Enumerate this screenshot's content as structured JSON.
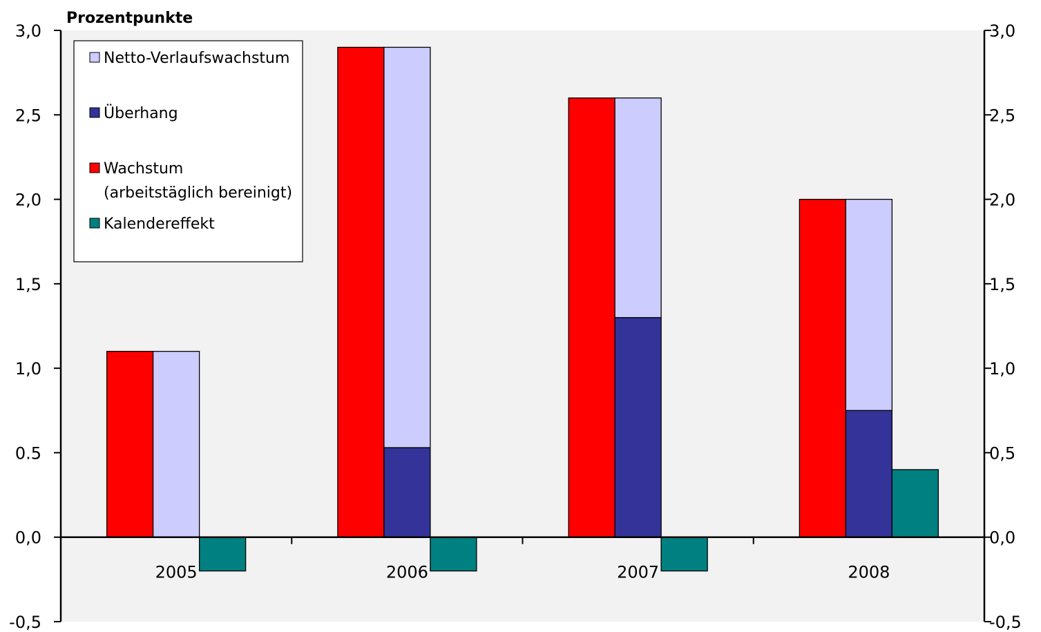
{
  "chart_data": {
    "type": "bar",
    "unit_label": "Prozentpunkte",
    "categories": [
      "2005",
      "2006",
      "2007",
      "2008"
    ],
    "ylim": [
      -0.5,
      3.0
    ],
    "y_ticks": [
      "3,0",
      "2,5",
      "2,0",
      "1,5",
      "1,0",
      "0.5",
      "0,0",
      "-0,5"
    ],
    "y_tick_values": [
      3.0,
      2.5,
      2.0,
      1.5,
      1.0,
      0.5,
      0.0,
      -0.5
    ],
    "y_ticks_right": [
      "3,0",
      "2,5",
      "2,0",
      "1,5",
      "1,0",
      "0,5",
      "0,0",
      "-0,5"
    ],
    "grid": false,
    "legend_position": "top-left",
    "series": [
      {
        "name": "Wachstum (arbeitstäglich bereinigt)",
        "role": "growth",
        "color": "#ff0000",
        "values": [
          1.1,
          2.9,
          2.6,
          2.0
        ]
      },
      {
        "name": "Überhang",
        "role": "carryover",
        "color": "#333399",
        "values": [
          0.0,
          0.53,
          1.3,
          0.75
        ]
      },
      {
        "name": "Netto-Verlaufswachstum",
        "role": "net",
        "color": "#ccccff",
        "values": [
          1.1,
          2.37,
          1.3,
          1.25
        ]
      },
      {
        "name": "Kalendereffekt",
        "role": "calendar",
        "color": "#008080",
        "values": [
          -0.2,
          -0.2,
          -0.2,
          0.4
        ]
      }
    ],
    "legend": [
      {
        "text": "Netto-Verlaufswachstum",
        "color": "#ccccff"
      },
      {
        "text": "Überhang",
        "color": "#333399"
      },
      {
        "text": "Wachstum",
        "text2": "(arbeitstäglich bereinigt)",
        "color": "#ff0000"
      },
      {
        "text": "Kalendereffekt",
        "color": "#008080"
      }
    ],
    "colors": {
      "plot_bg": "#f2f2f2",
      "axis": "#000000"
    }
  }
}
